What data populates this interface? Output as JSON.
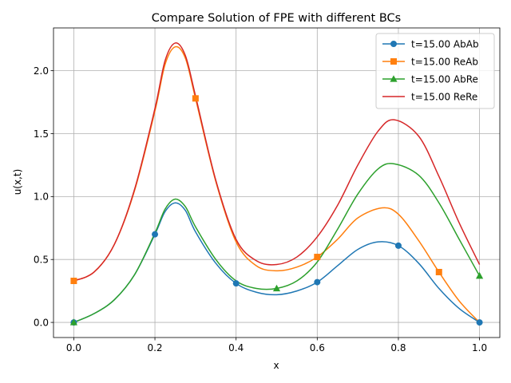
{
  "chart_data": {
    "type": "line",
    "title": "Compare Solution of FPE with different BCs",
    "xlabel": "x",
    "ylabel": "u(x,t)",
    "xlim": [
      -0.05,
      1.05
    ],
    "ylim": [
      -0.12,
      2.34
    ],
    "xticks": [
      "0.0",
      "0.2",
      "0.4",
      "0.6",
      "0.8",
      "1.0"
    ],
    "xtick_values": [
      0.0,
      0.2,
      0.4,
      0.6,
      0.8,
      1.0
    ],
    "yticks": [
      "0.0",
      "0.5",
      "1.0",
      "1.5",
      "2.0"
    ],
    "ytick_values": [
      0.0,
      0.5,
      1.0,
      1.5,
      2.0
    ],
    "grid": true,
    "legend_position": "top-right",
    "series": [
      {
        "name": "t=15.00 AbAb",
        "color": "#1f77b4",
        "marker": "circle",
        "x": [
          0.0,
          0.05,
          0.1,
          0.15,
          0.2,
          0.225,
          0.25,
          0.275,
          0.3,
          0.35,
          0.4,
          0.45,
          0.5,
          0.55,
          0.6,
          0.65,
          0.7,
          0.75,
          0.8,
          0.85,
          0.9,
          0.95,
          1.0
        ],
        "y": [
          0.0,
          0.07,
          0.18,
          0.38,
          0.7,
          0.88,
          0.95,
          0.89,
          0.72,
          0.47,
          0.31,
          0.24,
          0.22,
          0.25,
          0.32,
          0.45,
          0.58,
          0.64,
          0.61,
          0.47,
          0.27,
          0.11,
          0.0
        ],
        "marker_x": [
          0.0,
          0.2,
          0.4,
          0.6,
          0.8,
          1.0
        ],
        "marker_y": [
          0.0,
          0.7,
          0.31,
          0.32,
          0.61,
          0.0
        ]
      },
      {
        "name": "t=15.00 ReAb",
        "color": "#ff7f0e",
        "marker": "square",
        "x": [
          0.0,
          0.05,
          0.1,
          0.15,
          0.2,
          0.225,
          0.25,
          0.275,
          0.3,
          0.35,
          0.4,
          0.45,
          0.5,
          0.55,
          0.6,
          0.65,
          0.7,
          0.76,
          0.8,
          0.85,
          0.9,
          0.95,
          1.0
        ],
        "y": [
          0.33,
          0.4,
          0.62,
          1.05,
          1.68,
          2.05,
          2.19,
          2.1,
          1.78,
          1.12,
          0.64,
          0.45,
          0.41,
          0.44,
          0.52,
          0.66,
          0.83,
          0.91,
          0.86,
          0.65,
          0.4,
          0.17,
          0.0
        ],
        "marker_x": [
          0.0,
          0.3,
          0.6,
          0.9
        ],
        "marker_y": [
          0.33,
          1.78,
          0.52,
          0.4
        ]
      },
      {
        "name": "t=15.00 AbRe",
        "color": "#2ca02c",
        "marker": "triangle",
        "x": [
          0.0,
          0.05,
          0.1,
          0.15,
          0.2,
          0.225,
          0.25,
          0.275,
          0.3,
          0.35,
          0.4,
          0.45,
          0.5,
          0.55,
          0.6,
          0.65,
          0.7,
          0.75,
          0.79,
          0.85,
          0.9,
          0.95,
          1.0
        ],
        "y": [
          0.0,
          0.07,
          0.18,
          0.38,
          0.71,
          0.9,
          0.98,
          0.92,
          0.76,
          0.5,
          0.33,
          0.27,
          0.27,
          0.33,
          0.48,
          0.74,
          1.02,
          1.22,
          1.26,
          1.17,
          0.95,
          0.66,
          0.37
        ],
        "marker_x": [
          0.0,
          0.5,
          1.0
        ],
        "marker_y": [
          0.0,
          0.27,
          0.37
        ]
      },
      {
        "name": "t=15.00 ReRe",
        "color": "#d62728",
        "marker": "none",
        "x": [
          0.0,
          0.05,
          0.1,
          0.15,
          0.2,
          0.225,
          0.25,
          0.275,
          0.3,
          0.35,
          0.4,
          0.45,
          0.5,
          0.55,
          0.6,
          0.65,
          0.7,
          0.75,
          0.79,
          0.85,
          0.9,
          0.95,
          1.0
        ],
        "y": [
          0.33,
          0.4,
          0.62,
          1.06,
          1.7,
          2.08,
          2.22,
          2.12,
          1.8,
          1.13,
          0.66,
          0.49,
          0.46,
          0.52,
          0.68,
          0.93,
          1.25,
          1.52,
          1.61,
          1.48,
          1.16,
          0.79,
          0.46
        ]
      }
    ]
  }
}
